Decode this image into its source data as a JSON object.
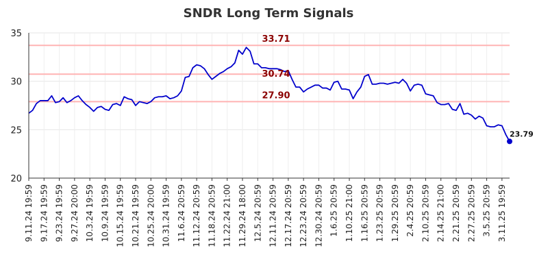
{
  "chart_data": {
    "type": "line",
    "title": "SNDR Long Term Signals",
    "xlabel": "",
    "ylabel": "",
    "ylim": [
      20,
      35
    ],
    "y_ticks": [
      "20",
      "25",
      "30",
      "35"
    ],
    "y_tick_values": [
      20,
      25,
      30,
      35
    ],
    "grid": true,
    "x_tick_labels": [
      "9.11.24 19:59",
      "9.17.24 19:59",
      "9.23.24 19:59",
      "9.27.24 20:00",
      "10.3.24 19:59",
      "10.9.24 19:59",
      "10.15.24 19:59",
      "10.21.24 19:59",
      "10.25.24 20:00",
      "10.31.24 19:59",
      "11.6.24 20:59",
      "11.12.24 20:59",
      "11.18.24 20:59",
      "11.22.24 21:00",
      "11.29.24 18:00",
      "12.5.24 20:59",
      "12.11.24 20:59",
      "12.17.24 20:59",
      "12.23.24 20:59",
      "12.30.24 20:59",
      "1.6.25 20:59",
      "1.10.25 21:00",
      "1.16.25 20:59",
      "1.23.25 20:59",
      "1.29.25 20:59",
      "2.4.25 20:59",
      "2.10.25 20:59",
      "2.14.25 21:00",
      "2.21.25 20:59",
      "2.27.25 20:59",
      "3.5.25 20:59",
      "3.11.25 19:59"
    ],
    "x_tick_index": [
      0,
      4,
      8,
      12,
      16,
      20,
      24,
      28,
      32,
      36,
      40,
      44,
      48,
      52,
      56,
      60,
      64,
      68,
      72,
      76,
      80,
      84,
      88,
      92,
      96,
      100,
      104,
      108,
      112,
      116,
      120,
      124
    ],
    "reference_lines": [
      {
        "value": 33.71,
        "label": "33.71"
      },
      {
        "value": 30.74,
        "label": ""
      },
      {
        "value": 27.9,
        "label": "27.90"
      }
    ],
    "mid_label": "30.74",
    "line_color": "#0000cc",
    "ref_color": "#ffb3b3",
    "ref_label_color": "#8b0000",
    "last_value_label": "23.79",
    "series": [
      {
        "values": [
          26.7,
          27.0,
          27.7,
          28.0,
          28.0,
          28.0,
          28.5,
          27.8,
          27.9,
          28.3,
          27.8,
          28.0,
          28.3,
          28.5,
          28.0,
          27.6,
          27.3,
          26.9,
          27.3,
          27.4,
          27.1,
          27.0,
          27.6,
          27.7,
          27.5,
          28.4,
          28.2,
          28.1,
          27.5,
          27.9,
          27.8,
          27.7,
          27.9,
          28.3,
          28.4,
          28.4,
          28.5,
          28.2,
          28.3,
          28.5,
          29.0,
          30.4,
          30.5,
          31.4,
          31.7,
          31.6,
          31.3,
          30.7,
          30.2,
          30.5,
          30.8,
          31.0,
          31.3,
          31.5,
          31.9,
          33.2,
          32.8,
          33.5,
          33.1,
          31.8,
          31.8,
          31.4,
          31.4,
          31.3,
          31.3,
          31.3,
          31.2,
          31.0,
          31.1,
          30.2,
          29.4,
          29.4,
          28.9,
          29.2,
          29.4,
          29.6,
          29.6,
          29.3,
          29.3,
          29.1,
          29.9,
          30.0,
          29.2,
          29.2,
          29.1,
          28.2,
          28.9,
          29.4,
          30.5,
          30.7,
          29.7,
          29.7,
          29.8,
          29.8,
          29.7,
          29.8,
          29.9,
          29.8,
          30.2,
          29.8,
          29.0,
          29.6,
          29.7,
          29.6,
          28.7,
          28.6,
          28.5,
          27.8,
          27.6,
          27.6,
          27.7,
          27.1,
          27.0,
          27.7,
          26.6,
          26.7,
          26.5,
          26.1,
          26.4,
          26.2,
          25.4,
          25.3,
          25.3,
          25.5,
          25.4,
          24.5,
          23.79
        ]
      }
    ]
  }
}
